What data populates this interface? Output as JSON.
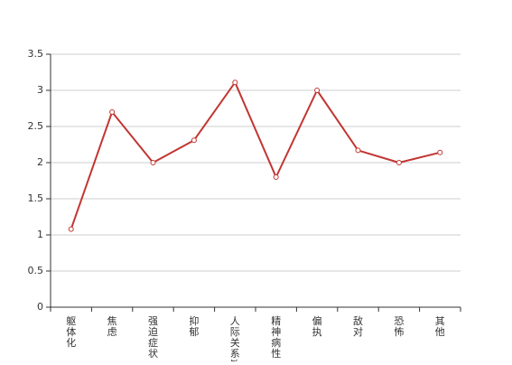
{
  "chart_data": {
    "type": "line",
    "categories": [
      "躯体化",
      "焦虑",
      "强迫症状",
      "抑郁",
      "人际关系敏感",
      "精神病性",
      "偏执",
      "敌对",
      "恐怖",
      "其他"
    ],
    "series": [
      {
        "values": [
          1.08,
          2.7,
          2.0,
          2.31,
          3.11,
          1.8,
          3.0,
          2.17,
          2.0,
          2.14
        ],
        "color": "#c23531"
      }
    ],
    "yticks": [
      "0",
      "0.5",
      "1",
      "1.5",
      "2",
      "2.5",
      "3",
      "3.5"
    ],
    "ylim": [
      0,
      3.5
    ],
    "grid": true,
    "title": "",
    "xlabel": "",
    "ylabel": ""
  }
}
